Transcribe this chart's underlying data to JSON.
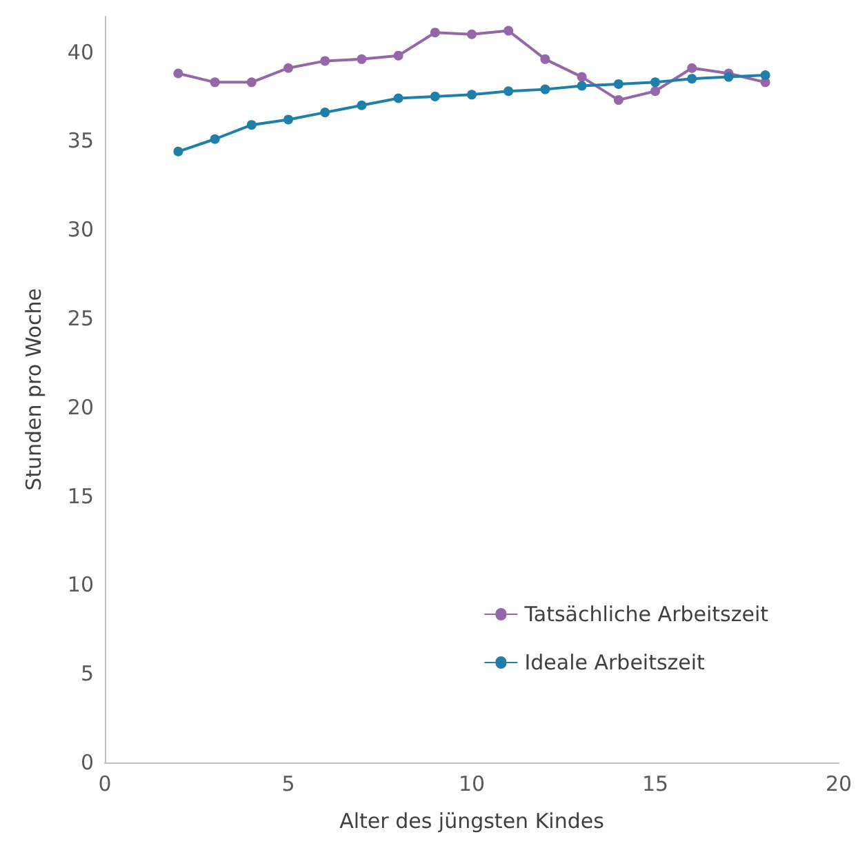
{
  "chart_data": {
    "type": "line",
    "xlabel": "Alter des jüngsten Kindes",
    "ylabel": "Stunden pro Woche",
    "x": [
      2,
      3,
      4,
      5,
      6,
      7,
      8,
      9,
      10,
      11,
      12,
      13,
      14,
      15,
      16,
      17,
      18
    ],
    "series": [
      {
        "name": "Tatsächliche Arbeitszeit",
        "color": "#9467a8",
        "values": [
          38.8,
          38.3,
          38.3,
          39.1,
          39.5,
          39.6,
          39.8,
          41.1,
          41.0,
          41.2,
          39.6,
          38.6,
          37.3,
          37.8,
          39.1,
          38.8,
          38.3
        ]
      },
      {
        "name": "Ideale Arbeitszeit",
        "color": "#1f7fa8",
        "values": [
          34.4,
          35.1,
          35.9,
          36.2,
          36.6,
          37.0,
          37.4,
          37.5,
          37.6,
          37.8,
          37.9,
          38.1,
          38.2,
          38.3,
          38.5,
          38.6,
          38.7
        ]
      }
    ],
    "xlim": [
      0,
      20
    ],
    "xticks": [
      0,
      5,
      10,
      15,
      20
    ],
    "ylim": [
      0,
      42
    ],
    "yticks": [
      0,
      5,
      10,
      15,
      20,
      25,
      30,
      35,
      40
    ],
    "grid": false,
    "legend": "bottom right",
    "marker": "circle",
    "line_style": "solid"
  }
}
